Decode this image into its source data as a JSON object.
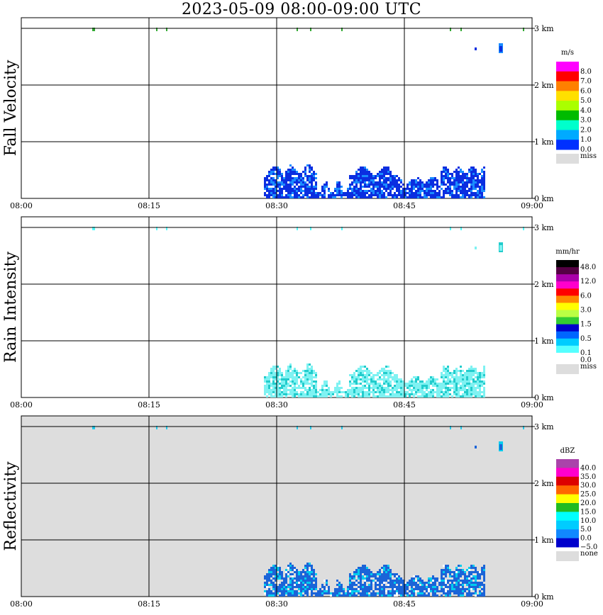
{
  "title": "2023-05-09   08:00-09:00 UTC",
  "chart_data": [
    {
      "type": "heatmap",
      "ylabel": "Fall Velocity",
      "unit": "m/s",
      "background_color": "#ffffff",
      "x_ticks": [
        "08:00",
        "08:15",
        "08:30",
        "08:45",
        "09:00"
      ],
      "y_ticks": [
        "0 km",
        "1 km",
        "2 km",
        "3 km"
      ],
      "xlim_minutes": [
        0,
        60
      ],
      "ylim_km": [
        0,
        3.2
      ],
      "grid": true,
      "legend": [
        {
          "label": "8.0",
          "color": "#ff00ff"
        },
        {
          "label": "7.0",
          "color": "#ff0000"
        },
        {
          "label": "6.0",
          "color": "#ff8000"
        },
        {
          "label": "5.0",
          "color": "#ffe000"
        },
        {
          "label": "4.0",
          "color": "#aaff00"
        },
        {
          "label": "3.0",
          "color": "#00bb00"
        },
        {
          "label": "2.0",
          "color": "#00ffcc"
        },
        {
          "label": "1.0",
          "color": "#00aaff"
        },
        {
          "label": "0.0",
          "color": "#0030ff"
        },
        {
          "label": "miss",
          "color": "#dddddd"
        }
      ],
      "echo_color": "#0b2ee0",
      "echo_accent": "#1a8cff",
      "sparse_color": "#33aa33"
    },
    {
      "type": "heatmap",
      "ylabel": "Rain Intensity",
      "unit": "mm/hr",
      "background_color": "#ffffff",
      "x_ticks": [
        "08:00",
        "08:15",
        "08:30",
        "08:45",
        "09:00"
      ],
      "y_ticks": [
        "0 km",
        "1 km",
        "2 km",
        "3 km"
      ],
      "xlim_minutes": [
        0,
        60
      ],
      "ylim_km": [
        0,
        3.2
      ],
      "grid": true,
      "legend": [
        {
          "label": "48.0",
          "color": "#000000"
        },
        {
          "label": "",
          "color": "#550044"
        },
        {
          "label": "12.0",
          "color": "#aa00aa"
        },
        {
          "label": "",
          "color": "#ff00cc"
        },
        {
          "label": "6.0",
          "color": "#ff0000"
        },
        {
          "label": "",
          "color": "#ff8800"
        },
        {
          "label": "3.0",
          "color": "#ffff00"
        },
        {
          "label": "",
          "color": "#bbff44"
        },
        {
          "label": "1.5",
          "color": "#33cc33"
        },
        {
          "label": "",
          "color": "#0000cc"
        },
        {
          "label": "0.5",
          "color": "#0066ff"
        },
        {
          "label": "",
          "color": "#00ccff"
        },
        {
          "label": "0.1",
          "color": "#55ffff"
        },
        {
          "label": "0.0",
          "color": "#ffffff"
        },
        {
          "label": "miss",
          "color": "#dddddd"
        }
      ],
      "echo_color": "#7ff2f2",
      "echo_accent": "#22cccc",
      "sparse_color": "#55ffff"
    },
    {
      "type": "heatmap",
      "ylabel": "Reflectivity",
      "unit": "dBZ",
      "background_color": "#dddddd",
      "x_ticks": [
        "08:00",
        "08:15",
        "08:30",
        "08:45",
        "09:00"
      ],
      "y_ticks": [
        "0 km",
        "1 km",
        "2 km",
        "3 km"
      ],
      "xlim_minutes": [
        0,
        60
      ],
      "ylim_km": [
        0,
        3.2
      ],
      "grid": true,
      "legend": [
        {
          "label": "40.0",
          "color": "#aa44aa"
        },
        {
          "label": "35.0",
          "color": "#ff00cc"
        },
        {
          "label": "30.0",
          "color": "#dd0000"
        },
        {
          "label": "25.0",
          "color": "#ff6600"
        },
        {
          "label": "20.0",
          "color": "#ffff00"
        },
        {
          "label": "15.0",
          "color": "#22bb22"
        },
        {
          "label": "10.0",
          "color": "#00ffff"
        },
        {
          "label": "5.0",
          "color": "#00ccff"
        },
        {
          "label": "0.0",
          "color": "#1188ff"
        },
        {
          "label": "−5.0",
          "color": "#0000cc"
        },
        {
          "label": "none",
          "color": "#dddddd"
        }
      ],
      "echo_color": "#1b64d8",
      "echo_accent": "#00ccee",
      "sparse_color": "#22ccee"
    }
  ]
}
